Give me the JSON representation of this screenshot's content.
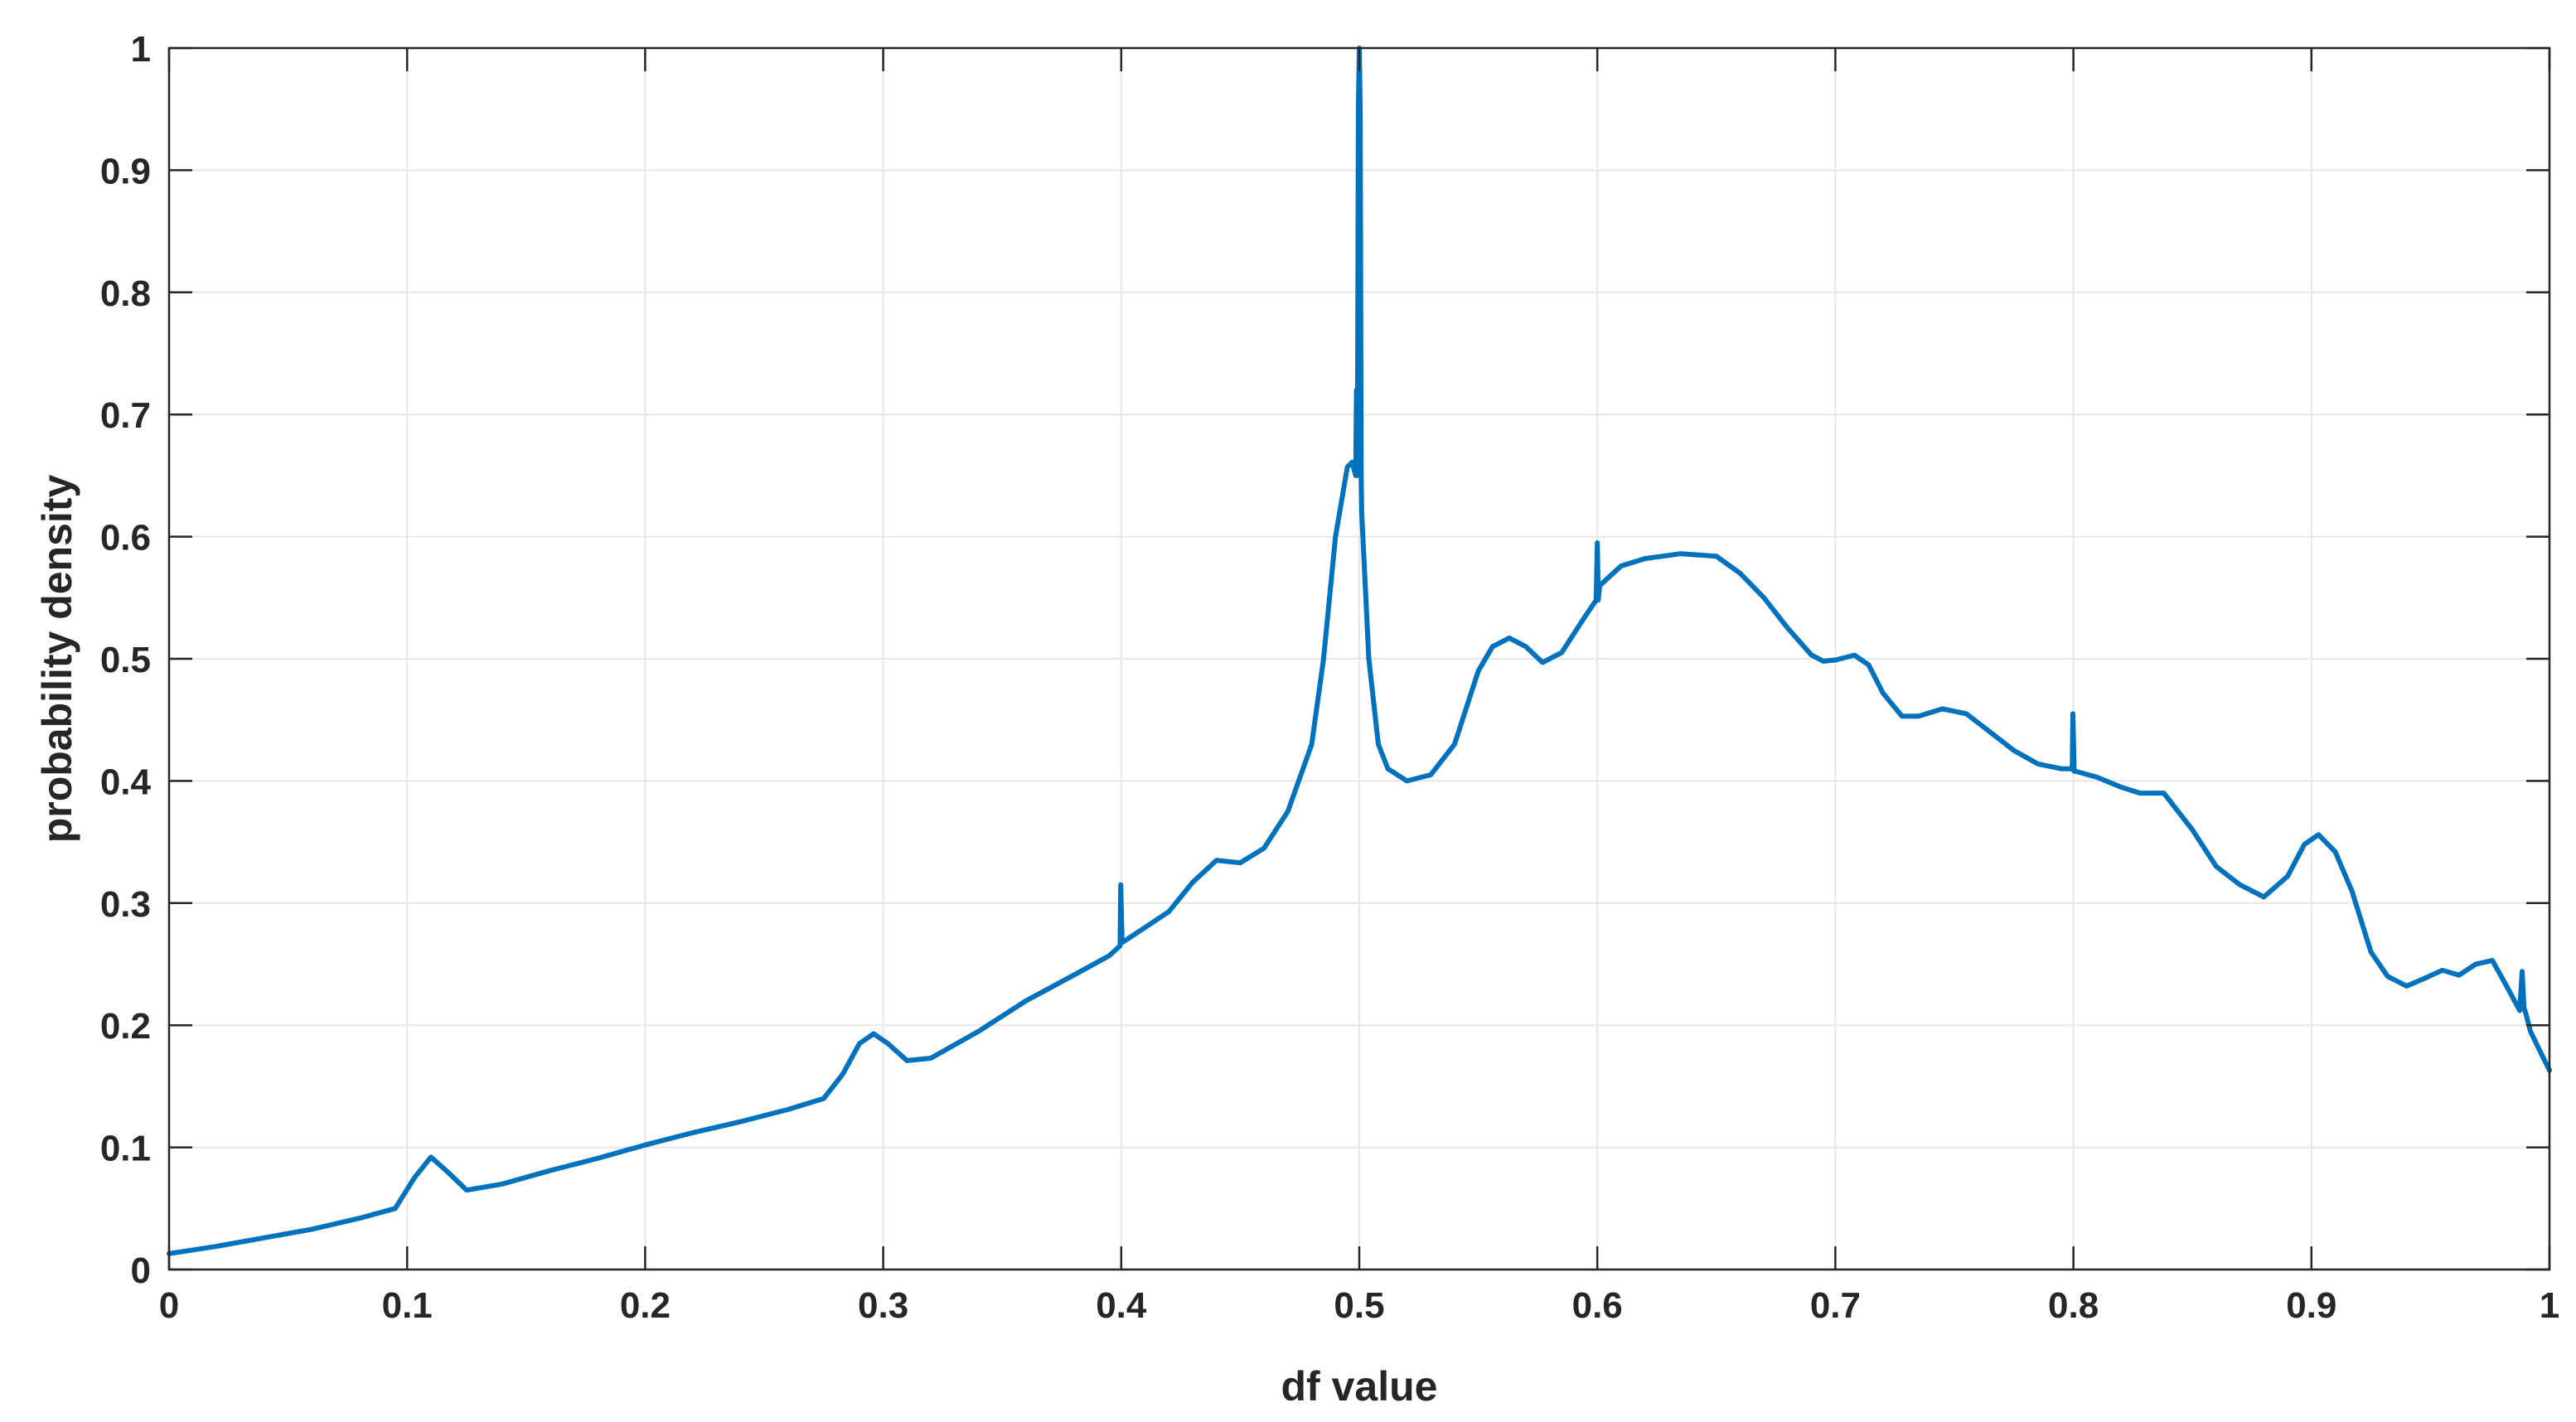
{
  "chart_data": {
    "type": "line",
    "title": "",
    "xlabel": "df value",
    "ylabel": "probability density",
    "xlim": [
      0,
      1
    ],
    "ylim": [
      0,
      1
    ],
    "grid": true,
    "legend": "none",
    "xticks": [
      0,
      0.1,
      0.2,
      0.3,
      0.4,
      0.5,
      0.6,
      0.7,
      0.8,
      0.9,
      1
    ],
    "yticks": [
      0,
      0.1,
      0.2,
      0.3,
      0.4,
      0.5,
      0.6,
      0.7,
      0.8,
      0.9,
      1
    ],
    "xtick_labels": [
      "0",
      "0.1",
      "0.2",
      "0.3",
      "0.4",
      "0.5",
      "0.6",
      "0.7",
      "0.8",
      "0.9",
      "1"
    ],
    "ytick_labels": [
      "0",
      "0.1",
      "0.2",
      "0.3",
      "0.4",
      "0.5",
      "0.6",
      "0.7",
      "0.8",
      "0.9",
      "1"
    ],
    "colors": {
      "line": "#0072BD",
      "grid": "#e6e6e6",
      "axis": "#262626"
    },
    "series": [
      {
        "x": [
          0,
          0.02,
          0.04,
          0.06,
          0.08,
          0.095,
          0.103,
          0.11,
          0.117,
          0.125,
          0.14,
          0.16,
          0.18,
          0.2,
          0.22,
          0.24,
          0.26,
          0.275,
          0.283,
          0.29,
          0.296,
          0.302,
          0.31,
          0.32,
          0.34,
          0.36,
          0.38,
          0.395,
          0.3995,
          0.3998,
          0.4003,
          0.4006,
          0.41,
          0.42,
          0.43,
          0.44,
          0.45,
          0.46,
          0.47,
          0.48,
          0.485,
          0.49,
          0.495,
          0.497,
          0.4985,
          0.4988,
          0.4992,
          0.4996,
          0.5,
          0.5004,
          0.5008,
          0.501,
          0.504,
          0.508,
          0.512,
          0.52,
          0.53,
          0.54,
          0.55,
          0.556,
          0.563,
          0.57,
          0.577,
          0.585,
          0.595,
          0.5995,
          0.6,
          0.6004,
          0.601,
          0.61,
          0.62,
          0.635,
          0.65,
          0.66,
          0.67,
          0.68,
          0.69,
          0.695,
          0.7,
          0.708,
          0.714,
          0.72,
          0.728,
          0.735,
          0.745,
          0.755,
          0.765,
          0.775,
          0.785,
          0.795,
          0.7995,
          0.7998,
          0.8003,
          0.8008,
          0.81,
          0.82,
          0.828,
          0.838,
          0.85,
          0.86,
          0.87,
          0.88,
          0.89,
          0.897,
          0.903,
          0.91,
          0.917,
          0.925,
          0.932,
          0.94,
          0.947,
          0.955,
          0.962,
          0.969,
          0.976,
          0.982,
          0.9875,
          0.9885,
          0.9893,
          0.99,
          0.992,
          0.995,
          1
        ],
        "y": [
          0.013,
          0.019,
          0.026,
          0.033,
          0.042,
          0.05,
          0.075,
          0.092,
          0.08,
          0.065,
          0.07,
          0.081,
          0.091,
          0.102,
          0.112,
          0.121,
          0.131,
          0.14,
          0.16,
          0.185,
          0.193,
          0.185,
          0.171,
          0.173,
          0.195,
          0.22,
          0.241,
          0.257,
          0.265,
          0.315,
          0.27,
          0.268,
          0.28,
          0.293,
          0.317,
          0.335,
          0.333,
          0.345,
          0.375,
          0.43,
          0.5,
          0.6,
          0.657,
          0.661,
          0.65,
          0.72,
          0.65,
          0.95,
          1.0,
          0.95,
          0.65,
          0.62,
          0.5,
          0.43,
          0.41,
          0.4,
          0.405,
          0.43,
          0.49,
          0.51,
          0.517,
          0.51,
          0.497,
          0.505,
          0.535,
          0.548,
          0.595,
          0.548,
          0.56,
          0.576,
          0.582,
          0.586,
          0.584,
          0.57,
          0.55,
          0.525,
          0.503,
          0.498,
          0.499,
          0.503,
          0.495,
          0.472,
          0.453,
          0.453,
          0.459,
          0.455,
          0.44,
          0.425,
          0.414,
          0.41,
          0.41,
          0.455,
          0.408,
          0.408,
          0.403,
          0.395,
          0.39,
          0.39,
          0.36,
          0.33,
          0.315,
          0.305,
          0.322,
          0.348,
          0.356,
          0.342,
          0.31,
          0.26,
          0.24,
          0.232,
          0.238,
          0.245,
          0.241,
          0.25,
          0.253,
          0.232,
          0.212,
          0.244,
          0.214,
          0.21,
          0.195,
          0.183,
          0.163
        ]
      }
    ]
  }
}
